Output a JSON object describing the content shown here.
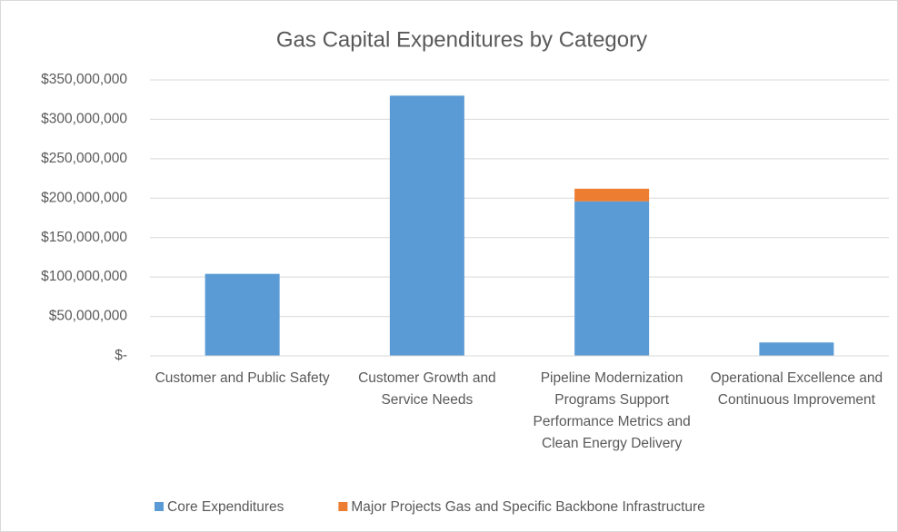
{
  "chart_data": {
    "type": "bar",
    "stacked": true,
    "title": "Gas Capital Expenditures by Category",
    "categories": [
      "Customer and Public Safety",
      "Customer Growth and Service Needs",
      "Pipeline Modernization Programs Support Performance Metrics and Clean Energy Delivery",
      "Operational Excellence and Continuous Improvement"
    ],
    "series": [
      {
        "name": "Core Expenditures",
        "color": "#5b9bd5",
        "values": [
          104000000,
          330000000,
          196000000,
          17000000
        ]
      },
      {
        "name": "Major Projects Gas and Specific Backbone Infrastructure",
        "color": "#ed7d31",
        "values": [
          null,
          null,
          16000000,
          null
        ]
      }
    ],
    "ylim": [
      0,
      350000000
    ],
    "yticks": [
      {
        "value": 0,
        "label": "$-"
      },
      {
        "value": 50000000,
        "label": "$50,000,000"
      },
      {
        "value": 100000000,
        "label": "$100,000,000"
      },
      {
        "value": 150000000,
        "label": "$150,000,000"
      },
      {
        "value": 200000000,
        "label": "$200,000,000"
      },
      {
        "value": 250000000,
        "label": "$250,000,000"
      },
      {
        "value": 300000000,
        "label": "$300,000,000"
      },
      {
        "value": 350000000,
        "label": "$350,000,000"
      }
    ],
    "grid": true,
    "legend": "bottom"
  }
}
